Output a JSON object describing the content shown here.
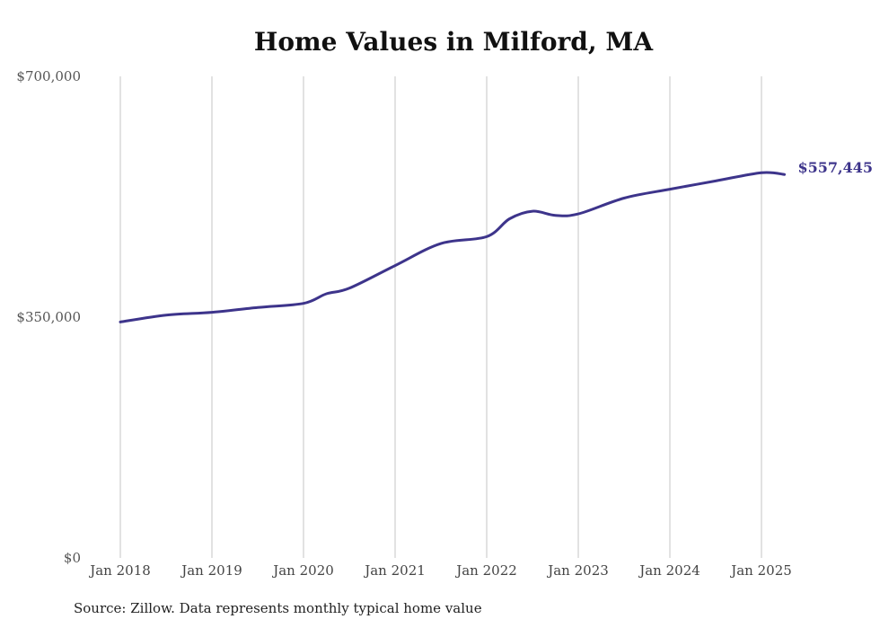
{
  "chart_data": {
    "type": "line",
    "title": "Home Values in Milford, MA",
    "xlabel": "",
    "ylabel": "",
    "ylim": [
      0,
      700000
    ],
    "y_ticks": [
      "$0",
      "$350,000",
      "$700,000"
    ],
    "x_ticks": [
      "Jan 2018",
      "Jan 2019",
      "Jan 2020",
      "Jan 2021",
      "Jan 2022",
      "Jan 2023",
      "Jan 2024",
      "Jan 2025"
    ],
    "grid": "vertical",
    "series": [
      {
        "color": "#3d348b",
        "x": [
          "2018-01",
          "2018-07",
          "2019-01",
          "2019-07",
          "2020-01",
          "2020-04",
          "2020-07",
          "2021-01",
          "2021-07",
          "2022-01",
          "2022-04",
          "2022-07",
          "2022-10",
          "2023-01",
          "2023-07",
          "2024-01",
          "2024-07",
          "2025-01",
          "2025-04"
        ],
        "values": [
          343000,
          353000,
          357000,
          364000,
          370000,
          384000,
          392000,
          425000,
          457000,
          467000,
          493000,
          504000,
          498000,
          500000,
          523000,
          536000,
          548000,
          560000,
          557445
        ]
      }
    ],
    "end_label": "$557,445"
  },
  "source_note": "Source: Zillow. Data represents monthly typical home value"
}
